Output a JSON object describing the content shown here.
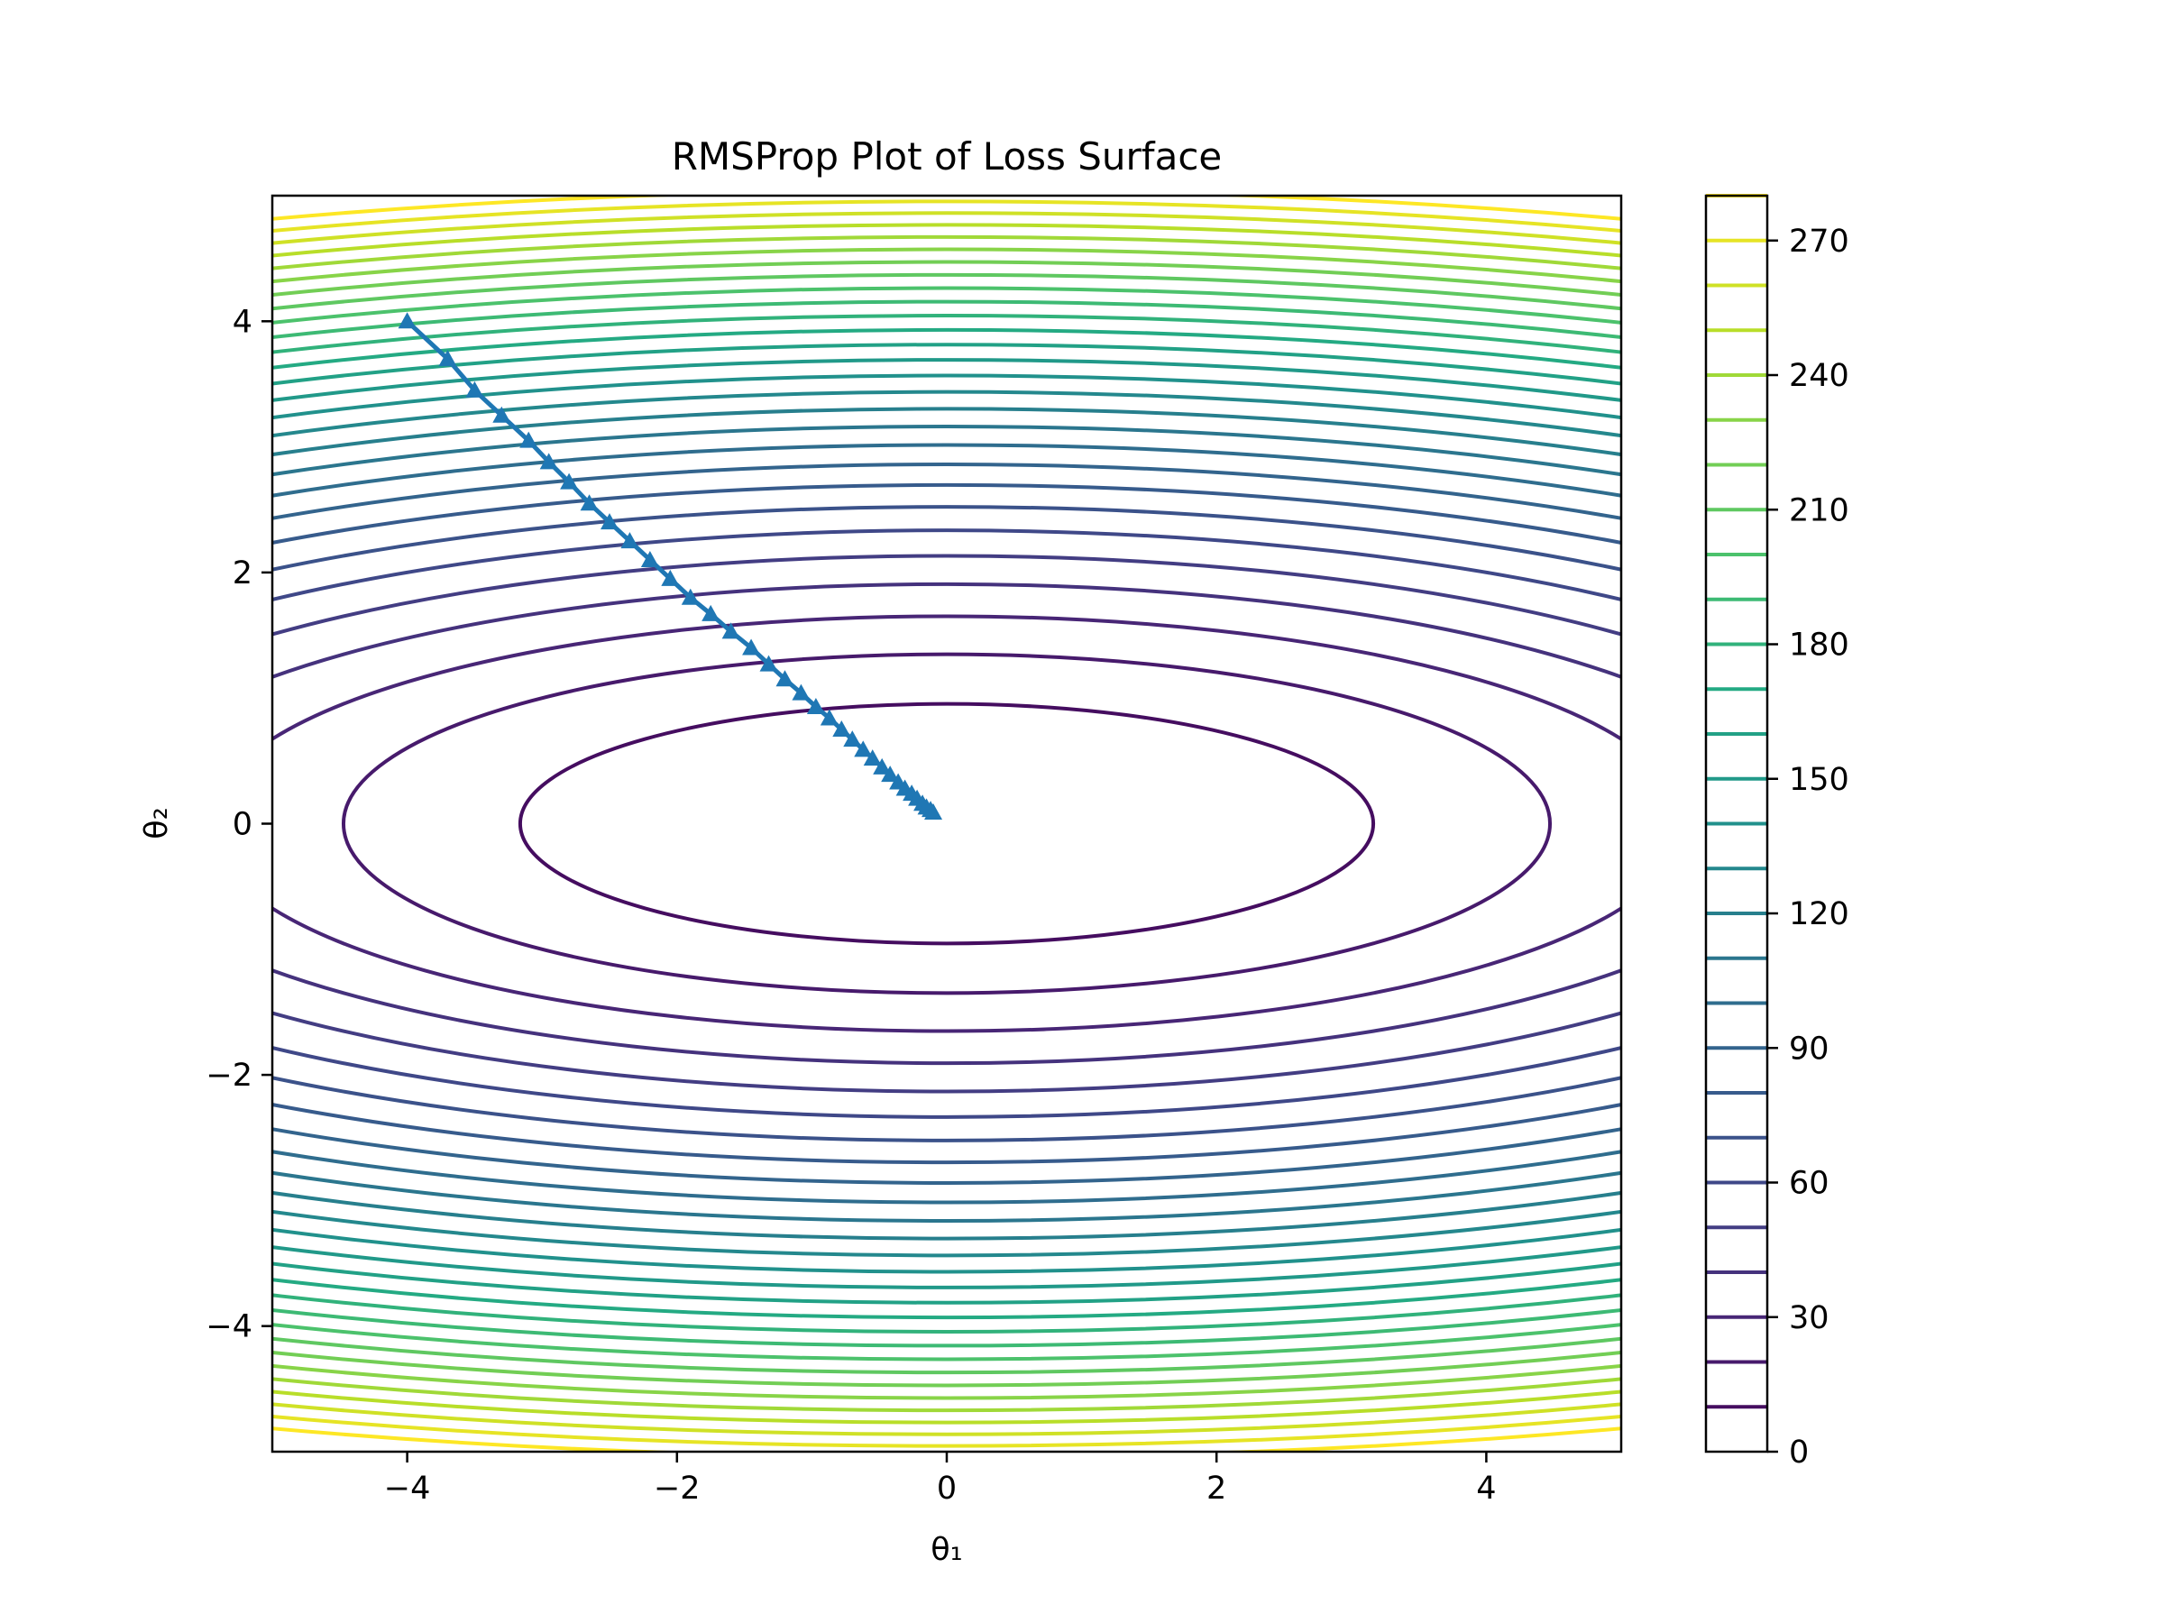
{
  "chart_data": {
    "type": "contour",
    "title": "RMSProp Plot of Loss Surface",
    "xlabel": "θ₁",
    "ylabel": "θ₂",
    "xlim": [
      -5,
      5
    ],
    "ylim": [
      -5,
      5
    ],
    "xticks": [
      {
        "value": -4,
        "label": "−4"
      },
      {
        "value": -2,
        "label": "−2"
      },
      {
        "value": 0,
        "label": "0"
      },
      {
        "value": 2,
        "label": "2"
      },
      {
        "value": 4,
        "label": "4"
      }
    ],
    "yticks": [
      {
        "value": -4,
        "label": "−4"
      },
      {
        "value": -2,
        "label": "−2"
      },
      {
        "value": 0,
        "label": "0"
      },
      {
        "value": 2,
        "label": "2"
      },
      {
        "value": 4,
        "label": "4"
      }
    ],
    "surface": {
      "a": 1,
      "b": 11
    },
    "contour_levels": {
      "min": 10,
      "max": 280,
      "step": 10
    },
    "colorbar": {
      "range": [
        0,
        280
      ],
      "ticks": [
        {
          "value": 0,
          "label": "0"
        },
        {
          "value": 30,
          "label": "30"
        },
        {
          "value": 60,
          "label": "60"
        },
        {
          "value": 90,
          "label": "90"
        },
        {
          "value": 120,
          "label": "120"
        },
        {
          "value": 150,
          "label": "150"
        },
        {
          "value": 180,
          "label": "180"
        },
        {
          "value": 210,
          "label": "210"
        },
        {
          "value": 240,
          "label": "240"
        },
        {
          "value": 270,
          "label": "270"
        }
      ],
      "colormap": "viridis"
    },
    "path": {
      "color": "#1f77b4",
      "marker": "triangle-up",
      "points": [
        [
          -4.0,
          4.0
        ],
        [
          -3.7,
          3.7
        ],
        [
          -3.5,
          3.45
        ],
        [
          -3.3,
          3.25
        ],
        [
          -3.1,
          3.05
        ],
        [
          -2.95,
          2.88
        ],
        [
          -2.8,
          2.72
        ],
        [
          -2.65,
          2.55
        ],
        [
          -2.5,
          2.4
        ],
        [
          -2.35,
          2.25
        ],
        [
          -2.2,
          2.1
        ],
        [
          -2.05,
          1.95
        ],
        [
          -1.9,
          1.8
        ],
        [
          -1.75,
          1.67
        ],
        [
          -1.6,
          1.53
        ],
        [
          -1.45,
          1.4
        ],
        [
          -1.32,
          1.27
        ],
        [
          -1.2,
          1.15
        ],
        [
          -1.08,
          1.04
        ],
        [
          -0.97,
          0.93
        ],
        [
          -0.87,
          0.84
        ],
        [
          -0.78,
          0.75
        ],
        [
          -0.7,
          0.67
        ],
        [
          -0.62,
          0.59
        ],
        [
          -0.55,
          0.52
        ],
        [
          -0.48,
          0.45
        ],
        [
          -0.42,
          0.39
        ],
        [
          -0.36,
          0.33
        ],
        [
          -0.31,
          0.28
        ],
        [
          -0.26,
          0.24
        ],
        [
          -0.22,
          0.2
        ],
        [
          -0.18,
          0.16
        ],
        [
          -0.15,
          0.13
        ],
        [
          -0.12,
          0.11
        ],
        [
          -0.1,
          0.09
        ]
      ]
    }
  }
}
